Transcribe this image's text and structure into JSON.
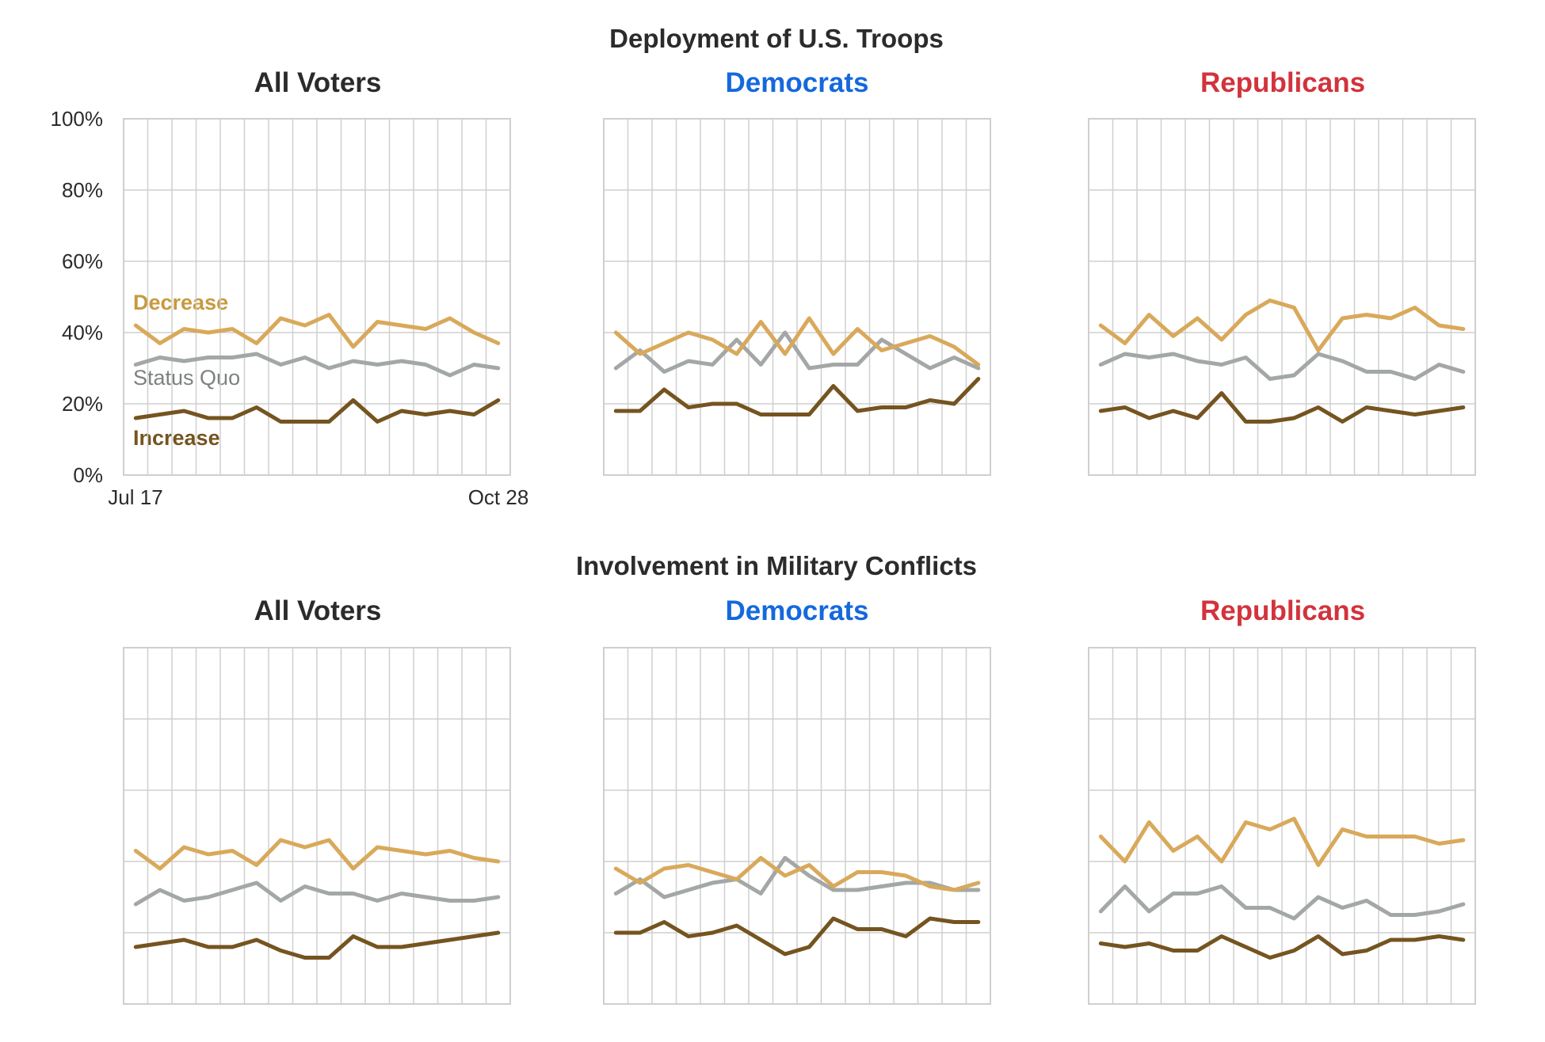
{
  "colors": {
    "decrease": "#d9a95b",
    "status_quo": "#a3a8a6",
    "increase": "#755420",
    "all_voters": "#2b2b2b",
    "democrats": "#1469dc",
    "republicans": "#d2333c",
    "grid": "#cfcfcf",
    "label_decrease": "#c79a3f",
    "label_status_quo": "#7d8280",
    "label_increase": "#755420"
  },
  "x_tick_labels": {
    "first": "Jul 17",
    "last": "Oct 28"
  },
  "y_tick_labels": [
    "0%",
    "20%",
    "40%",
    "60%",
    "80%",
    "100%"
  ],
  "series_labels": {
    "decrease": "Decrease",
    "status_quo": "Status Quo",
    "increase": "Increase"
  },
  "chart_data": [
    {
      "type": "line",
      "title": "Deployment of U.S. Troops",
      "ylim": [
        0,
        100
      ],
      "panels": [
        {
          "title": "All Voters",
          "color_key": "all_voters",
          "series": [
            {
              "name": "Decrease",
              "key": "decrease",
              "values": [
                42,
                37,
                41,
                40,
                41,
                37,
                44,
                42,
                45,
                36,
                43,
                42,
                41,
                44,
                40,
                37
              ]
            },
            {
              "name": "Status Quo",
              "key": "status_quo",
              "values": [
                31,
                33,
                32,
                33,
                33,
                34,
                31,
                33,
                30,
                32,
                31,
                32,
                31,
                28,
                31,
                30
              ]
            },
            {
              "name": "Increase",
              "key": "increase",
              "values": [
                16,
                17,
                18,
                16,
                16,
                19,
                15,
                15,
                15,
                21,
                15,
                18,
                17,
                18,
                17,
                21
              ]
            }
          ]
        },
        {
          "title": "Democrats",
          "color_key": "democrats",
          "series": [
            {
              "name": "Decrease",
              "key": "decrease",
              "values": [
                40,
                34,
                37,
                40,
                38,
                34,
                43,
                34,
                44,
                34,
                41,
                35,
                37,
                39,
                36,
                31
              ]
            },
            {
              "name": "Status Quo",
              "key": "status_quo",
              "values": [
                30,
                35,
                29,
                32,
                31,
                38,
                31,
                40,
                30,
                31,
                31,
                38,
                34,
                30,
                33,
                30
              ]
            },
            {
              "name": "Increase",
              "key": "increase",
              "values": [
                18,
                18,
                24,
                19,
                20,
                20,
                17,
                17,
                17,
                25,
                18,
                19,
                19,
                21,
                20,
                27
              ]
            }
          ]
        },
        {
          "title": "Republicans",
          "color_key": "republicans",
          "series": [
            {
              "name": "Decrease",
              "key": "decrease",
              "values": [
                42,
                37,
                45,
                39,
                44,
                38,
                45,
                49,
                47,
                35,
                44,
                45,
                44,
                47,
                42,
                41
              ]
            },
            {
              "name": "Status Quo",
              "key": "status_quo",
              "values": [
                31,
                34,
                33,
                34,
                32,
                31,
                33,
                27,
                28,
                34,
                32,
                29,
                29,
                27,
                31,
                29
              ]
            },
            {
              "name": "Increase",
              "key": "increase",
              "values": [
                18,
                19,
                16,
                18,
                16,
                23,
                15,
                15,
                16,
                19,
                15,
                19,
                18,
                17,
                18,
                19
              ]
            }
          ]
        }
      ]
    },
    {
      "type": "line",
      "title": "Involvement in Military Conflicts",
      "ylim": [
        0,
        100
      ],
      "panels": [
        {
          "title": "All Voters",
          "color_key": "all_voters",
          "series": [
            {
              "name": "Decrease",
              "key": "decrease",
              "values": [
                43,
                38,
                44,
                42,
                43,
                39,
                46,
                44,
                46,
                38,
                44,
                43,
                42,
                43,
                41,
                40
              ]
            },
            {
              "name": "Status Quo",
              "key": "status_quo",
              "values": [
                28,
                32,
                29,
                30,
                32,
                34,
                29,
                33,
                31,
                31,
                29,
                31,
                30,
                29,
                29,
                30
              ]
            },
            {
              "name": "Increase",
              "key": "increase",
              "values": [
                16,
                17,
                18,
                16,
                16,
                18,
                15,
                13,
                13,
                19,
                16,
                16,
                17,
                18,
                19,
                20
              ]
            }
          ]
        },
        {
          "title": "Democrats",
          "color_key": "democrats",
          "series": [
            {
              "name": "Decrease",
              "key": "decrease",
              "values": [
                38,
                34,
                38,
                39,
                37,
                35,
                41,
                36,
                39,
                33,
                37,
                37,
                36,
                33,
                32,
                34
              ]
            },
            {
              "name": "Status Quo",
              "key": "status_quo",
              "values": [
                31,
                35,
                30,
                32,
                34,
                35,
                31,
                41,
                36,
                32,
                32,
                33,
                34,
                34,
                32,
                32
              ]
            },
            {
              "name": "Increase",
              "key": "increase",
              "values": [
                20,
                20,
                23,
                19,
                20,
                22,
                18,
                14,
                16,
                24,
                21,
                21,
                19,
                24,
                23,
                23
              ]
            }
          ]
        },
        {
          "title": "Republicans",
          "color_key": "republicans",
          "series": [
            {
              "name": "Decrease",
              "key": "decrease",
              "values": [
                47,
                40,
                51,
                43,
                47,
                40,
                51,
                49,
                52,
                39,
                49,
                47,
                47,
                47,
                45,
                46
              ]
            },
            {
              "name": "Status Quo",
              "key": "status_quo",
              "values": [
                26,
                33,
                26,
                31,
                31,
                33,
                27,
                27,
                24,
                30,
                27,
                29,
                25,
                25,
                26,
                28
              ]
            },
            {
              "name": "Increase",
              "key": "increase",
              "values": [
                17,
                16,
                17,
                15,
                15,
                19,
                16,
                13,
                15,
                19,
                14,
                15,
                18,
                18,
                19,
                18
              ]
            }
          ]
        }
      ]
    }
  ]
}
